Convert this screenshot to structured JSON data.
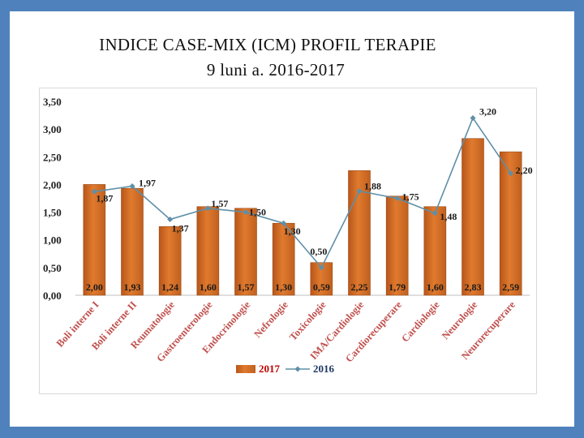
{
  "slide": {
    "title_line1": "INDICE CASE-MIX (ICM) PROFIL TERAPIE",
    "title_line2": "9 luni a. 2016-2017"
  },
  "colors": {
    "bar_2017": "#e07a2e",
    "line_2016": "#5f8fa7",
    "legend_2017_text": "#c00000",
    "legend_2016_text": "#1f3864",
    "frame": "#4f81bd"
  },
  "chart_data": {
    "type": "bar",
    "title": "INDICE CASE-MIX (ICM) PROFIL TERAPIE 9 luni a. 2016-2017",
    "categories": [
      "Boli interne I",
      "Boli interne II",
      "Reumatologie",
      "Gastroenterologie",
      "Endocrinologie",
      "Nefrologie",
      "Toxicologie",
      "IMA/Cardiologie",
      "Cardiorecuperare",
      "Cardiologie",
      "Neurologie",
      "Neurorecuperare"
    ],
    "series": [
      {
        "name": "2017",
        "kind": "bar",
        "values": [
          2.0,
          1.93,
          1.24,
          1.6,
          1.57,
          1.3,
          0.59,
          2.25,
          1.79,
          1.6,
          2.83,
          2.59
        ],
        "labels": [
          "2,00",
          "1,93",
          "1,24",
          "1,60",
          "1,57",
          "1,30",
          "0,59",
          "2,25",
          "1,79",
          "1,60",
          "2,83",
          "2,59"
        ]
      },
      {
        "name": "2016",
        "kind": "line",
        "values": [
          1.87,
          1.97,
          1.37,
          1.57,
          1.5,
          1.3,
          0.5,
          1.88,
          1.75,
          1.48,
          3.2,
          2.2
        ],
        "labels": [
          "1,87",
          "1,97",
          "1,37",
          "1,57",
          "1,50",
          "1,30",
          "0,50",
          "1,88",
          "1,75",
          "1,48",
          "3,20",
          "2,20"
        ]
      }
    ],
    "ylim": [
      0,
      3.5
    ],
    "yticks": [
      "0,00",
      "0,50",
      "1,00",
      "1,50",
      "2,00",
      "2,50",
      "3,00",
      "3,50"
    ],
    "ytick_values": [
      0,
      0.5,
      1,
      1.5,
      2,
      2.5,
      3,
      3.5
    ],
    "grid": false,
    "legend": {
      "position": "bottom",
      "entries": [
        "2017",
        "2016"
      ]
    }
  }
}
